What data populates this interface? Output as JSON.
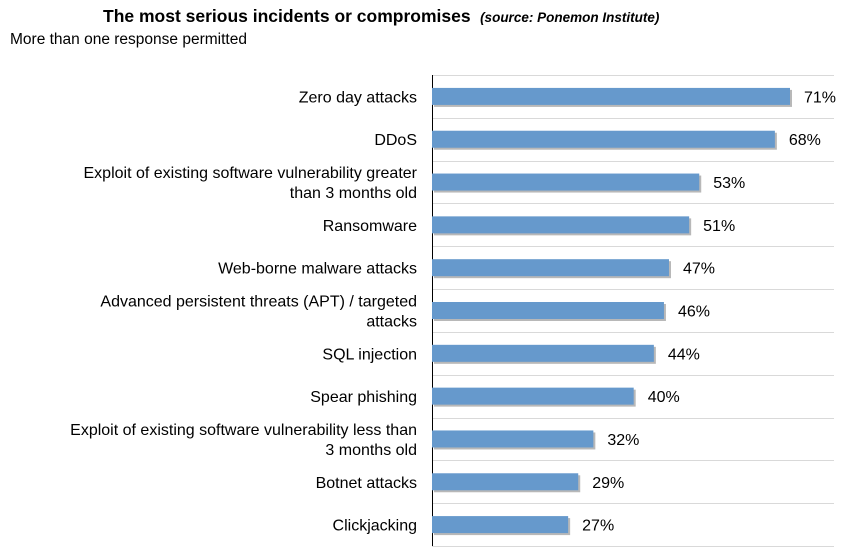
{
  "chart_data": {
    "type": "bar",
    "orientation": "horizontal",
    "title": "The most serious incidents or compromises",
    "source": "(source: Ponemon Institute)",
    "subtitle": "More than one response permitted",
    "categories": [
      "Zero day attacks",
      "DDoS",
      "Exploit of existing software vulnerability greater than 3 months old",
      "Ransomware",
      "Web-borne malware attacks",
      "Advanced persistent threats (APT) / targeted attacks",
      "SQL injection",
      "Spear phishing",
      "Exploit of existing software vulnerability less than 3 months old",
      "Botnet attacks",
      "Clickjacking"
    ],
    "category_lines": [
      [
        "Zero day attacks"
      ],
      [
        "DDoS"
      ],
      [
        "Exploit of existing software vulnerability greater",
        "than 3 months old"
      ],
      [
        "Ransomware"
      ],
      [
        "Web-borne malware attacks"
      ],
      [
        "Advanced persistent threats (APT) / targeted",
        "attacks"
      ],
      [
        "SQL injection"
      ],
      [
        "Spear phishing"
      ],
      [
        "Exploit of existing software vulnerability less than",
        "3 months old"
      ],
      [
        "Botnet attacks"
      ],
      [
        "Clickjacking"
      ]
    ],
    "values": [
      71,
      68,
      53,
      51,
      47,
      46,
      44,
      40,
      32,
      29,
      27
    ],
    "value_labels": [
      "71%",
      "68%",
      "53%",
      "51%",
      "47%",
      "46%",
      "44%",
      "40%",
      "32%",
      "29%",
      "27%"
    ],
    "xlim": [
      0,
      80
    ],
    "grid": true,
    "legend": "none",
    "bar_color": "#6699cc"
  }
}
